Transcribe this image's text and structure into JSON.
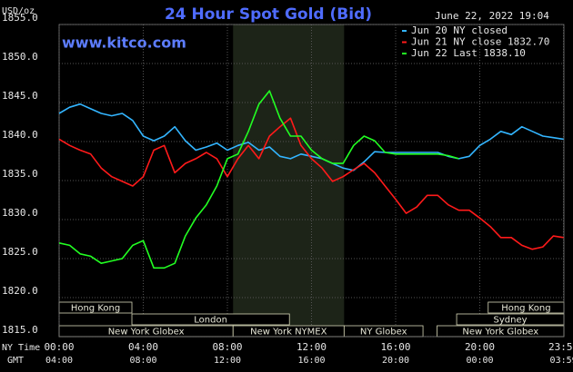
{
  "chart_data": {
    "type": "line",
    "title": "24 Hour Spot Gold (Bid)",
    "site": "www.kitco.com",
    "timestamp": "June 22, 2022 19:04",
    "y_axis_label": "USD/oz",
    "x_axis_label": "NY Time",
    "x2_axis_label": "GMT",
    "x": [
      0,
      0.5,
      1,
      1.5,
      2,
      2.5,
      3,
      3.5,
      4,
      4.5,
      5,
      5.5,
      6,
      6.5,
      7,
      7.5,
      8,
      8.5,
      9,
      9.5,
      10,
      10.5,
      11,
      11.5,
      12,
      12.5,
      13,
      13.5,
      14,
      14.5,
      15,
      15.5,
      16,
      16.5,
      17,
      17.5,
      18,
      18.5,
      19,
      19.5,
      20,
      20.5,
      21,
      21.5,
      22,
      22.5,
      23,
      23.5,
      23.983
    ],
    "series": [
      {
        "name": "Jun 20 NY closed",
        "color": "#33b5ff",
        "values": [
          1843.6,
          1844.4,
          1844.8,
          1844.2,
          1843.6,
          1843.3,
          1843.6,
          1842.7,
          1840.7,
          1840.1,
          1840.7,
          1841.9,
          1840.1,
          1838.9,
          1839.3,
          1839.8,
          1838.9,
          1839.5,
          1839.9,
          1838.9,
          1839.3,
          1838.1,
          1837.8,
          1838.4,
          1838.1,
          1837.8,
          1837.2,
          1836.6,
          1836.3,
          1837.4,
          1838.7,
          1838.6,
          1838.6,
          1838.6,
          1838.6,
          1838.6,
          1838.6,
          1838.1,
          1837.8,
          1838.1,
          1839.5,
          1840.3,
          1841.3,
          1840.9,
          1841.9,
          1841.3,
          1840.7,
          1840.5,
          1840.3
        ]
      },
      {
        "name": "Jun 21 NY close 1832.70",
        "color": "#ff1a1a",
        "values": [
          1840.3,
          1839.5,
          1838.9,
          1838.4,
          1836.6,
          1835.5,
          1834.9,
          1834.3,
          1835.5,
          1838.9,
          1839.5,
          1836.0,
          1837.2,
          1837.8,
          1838.6,
          1837.8,
          1835.5,
          1837.8,
          1839.5,
          1837.8,
          1840.7,
          1841.9,
          1843.0,
          1839.5,
          1837.8,
          1836.6,
          1834.9,
          1835.5,
          1836.4,
          1837.2,
          1836.0,
          1834.3,
          1832.6,
          1830.8,
          1831.6,
          1833.1,
          1833.1,
          1831.9,
          1831.2,
          1831.2,
          1830.2,
          1829.1,
          1827.7,
          1827.7,
          1826.7,
          1826.2,
          1826.5,
          1827.9,
          1827.7
        ]
      },
      {
        "name": "Jun 22 Last 1838.10",
        "color": "#22ff22",
        "values": [
          1827.0,
          1826.7,
          1825.6,
          1825.3,
          1824.4,
          1824.7,
          1825.0,
          1826.7,
          1827.3,
          1823.8,
          1823.8,
          1824.4,
          1827.9,
          1830.2,
          1831.9,
          1834.3,
          1837.8,
          1838.4,
          1841.3,
          1844.8,
          1846.5,
          1843.0,
          1840.7,
          1840.7,
          1838.9,
          1837.8,
          1837.2,
          1837.2,
          1839.5,
          1840.7,
          1840.1,
          1838.6,
          1838.4,
          1838.4,
          1838.4,
          1838.4,
          1838.4,
          1838.2,
          1837.8,
          null,
          null,
          null,
          null,
          null,
          null,
          null,
          null,
          null,
          null
        ]
      }
    ],
    "xlim": [
      0,
      24
    ],
    "xticks": [
      {
        "value": 0,
        "label": "00:00"
      },
      {
        "value": 4,
        "label": "04:00"
      },
      {
        "value": 8,
        "label": "08:00"
      },
      {
        "value": 12,
        "label": "12:00"
      },
      {
        "value": 16,
        "label": "16:00"
      },
      {
        "value": 20,
        "label": "20:00"
      },
      {
        "value": 23.983,
        "label": "23:59"
      }
    ],
    "gmt_tick_labels": [
      "04:00",
      "08:00",
      "12:00",
      "16:00",
      "20:00",
      "00:00",
      "03:59"
    ],
    "ylim": [
      1815,
      1855
    ],
    "yticks": [
      {
        "value": 1855,
        "label": "1855.0"
      },
      {
        "value": 1850,
        "label": "1850.0"
      },
      {
        "value": 1845,
        "label": "1845.0"
      },
      {
        "value": 1840,
        "label": "1840.0"
      },
      {
        "value": 1835,
        "label": "1835.0"
      },
      {
        "value": 1830,
        "label": "1830.0"
      },
      {
        "value": 1825,
        "label": "1825.0"
      },
      {
        "value": 1820,
        "label": "1820.0"
      },
      {
        "value": 1815,
        "label": "1815.0"
      }
    ],
    "grid": true,
    "shaded_x": [
      8.27,
      13.55
    ],
    "session_rows": [
      [
        {
          "name": "Hong Kong",
          "start": 0,
          "end": 3.46
        },
        {
          "name": "Hong Kong",
          "start": 20.4,
          "end": 24
        }
      ],
      [
        {
          "name": "London",
          "start": 3.46,
          "end": 10.95
        },
        {
          "name": "Sydney",
          "start": 18.9,
          "end": 24
        }
      ],
      [
        {
          "name": "New York Globex",
          "start": 0,
          "end": 8.27
        },
        {
          "name": "New York NYMEX",
          "start": 8.27,
          "end": 13.55
        },
        {
          "name": "NY Globex",
          "start": 13.55,
          "end": 17.3
        },
        {
          "name": "New York Globex",
          "start": 17.97,
          "end": 24
        }
      ]
    ]
  }
}
